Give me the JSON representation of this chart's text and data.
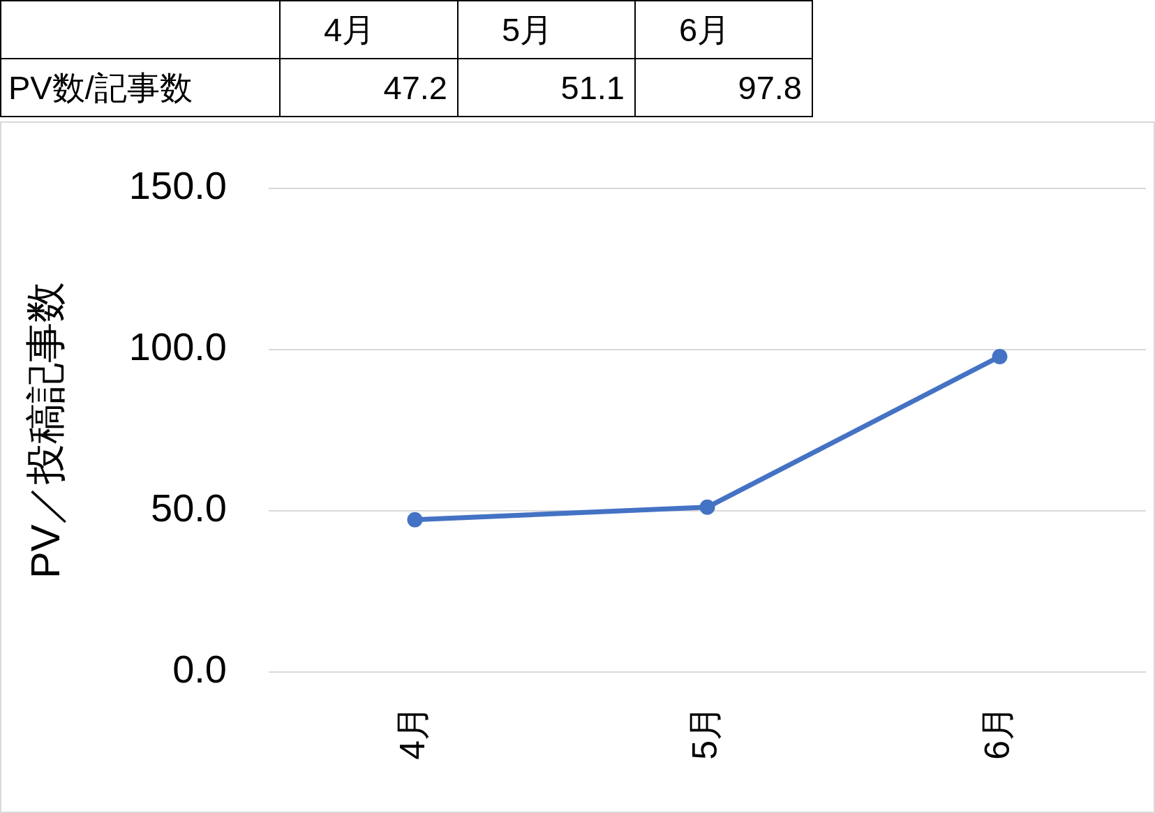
{
  "chart_data": [
    {
      "type": "other",
      "categories": [
        "4月",
        "5月",
        "6月"
      ],
      "series": [
        {
          "name": "PV数/記事数",
          "values": [
            47.2,
            51.1,
            97.8
          ]
        }
      ],
      "data_labels": true
    },
    {
      "type": "line",
      "categories": [
        "4月",
        "5月",
        "6月"
      ],
      "series": [
        {
          "color": "#4472c4",
          "values": [
            47.2,
            51.1,
            97.8
          ]
        }
      ],
      "ylabel": "PV／投稿記事数",
      "ylim": [
        0,
        150
      ],
      "yticks": [
        {
          "value": 0,
          "label": "0.0"
        },
        {
          "value": 50,
          "label": "50.0"
        },
        {
          "value": 100,
          "label": "100.0"
        },
        {
          "value": 150,
          "label": "150.0"
        }
      ],
      "grid": "y",
      "legend": false,
      "marker": "circle",
      "line_style": "solid"
    }
  ]
}
